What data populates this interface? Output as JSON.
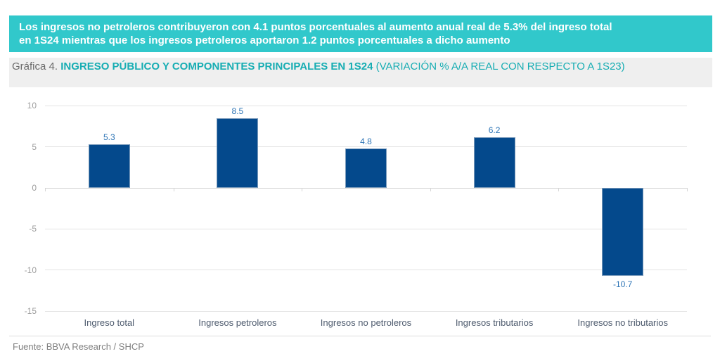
{
  "banner": {
    "lines": [
      "Los ingresos no petroleros contribuyeron con 4.1 puntos porcentuales al aumento anual real de 5.3% del ingreso total",
      "en 1S24 mientras que los ingresos petroleros aportaron 1.2 puntos porcentuales a dicho aumento"
    ],
    "bg_color": "#31C8CB",
    "text_color": "#FFFFFF"
  },
  "title": {
    "prefix": "Gráfica 4. ",
    "main": "INGRESO PÚBLICO Y COMPONENTES PRINCIPALES EN 1S24",
    "suffix": " (VARIACIÓN % A/A REAL CON RESPECTO A 1S23)",
    "accent_color": "#17ADB3"
  },
  "chart_data": {
    "type": "bar",
    "title": "Gráfica 4. INGRESO PÚBLICO Y COMPONENTES PRINCIPALES EN 1S24 (VARIACIÓN % A/A REAL CON RESPECTO A 1S23)",
    "categories": [
      "Ingreso total",
      "Ingresos petroleros",
      "Ingresos no petroleros",
      "Ingresos tributarios",
      "Ingresos no tributarios"
    ],
    "values": [
      5.3,
      8.5,
      4.8,
      6.2,
      -10.7
    ],
    "data_labels": [
      "5.3",
      "8.5",
      "4.8",
      "6.2",
      "-10.7"
    ],
    "xlabel": "",
    "ylabel": "",
    "ylim": [
      -15,
      10
    ],
    "yticks": [
      10,
      5,
      0,
      -5,
      -10,
      -15
    ],
    "grid": true,
    "legend": "none",
    "bar_color": "#04498C",
    "bar_border_color": "#7C9CBC",
    "data_label_color": "#2E75B6"
  },
  "footer": {
    "source": "Fuente: BBVA Research / SHCP"
  }
}
